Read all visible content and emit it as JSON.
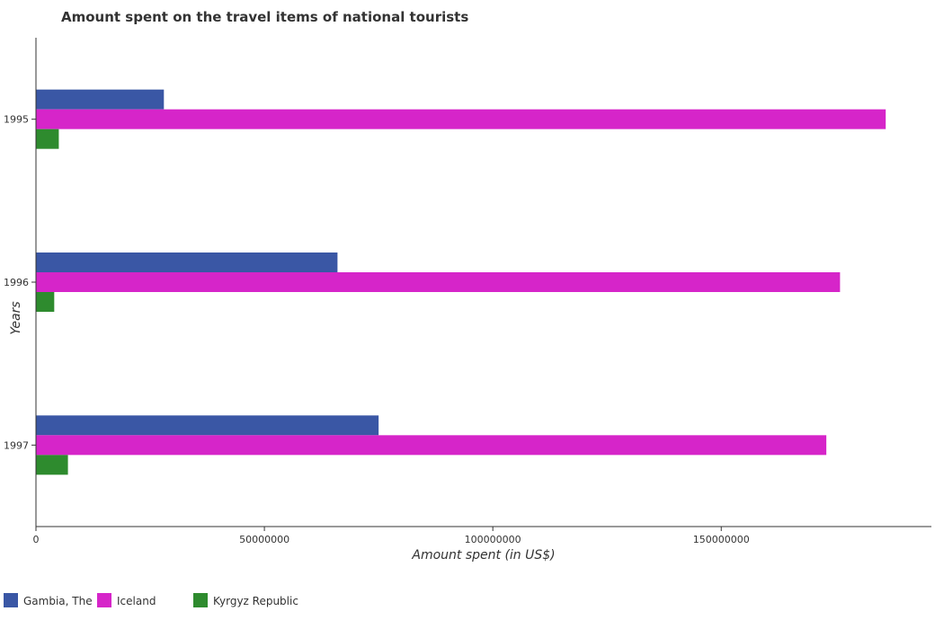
{
  "chart_data": {
    "type": "bar",
    "orientation": "horizontal",
    "title": "Amount spent on the travel items of national tourists",
    "xlabel": "Amount spent (in US$)",
    "ylabel": "Years",
    "categories": [
      "1995",
      "1996",
      "1997"
    ],
    "series": [
      {
        "name": "Gambia, The",
        "color": "#3a57a5",
        "values": [
          28000000,
          66000000,
          75000000
        ]
      },
      {
        "name": "Iceland",
        "color": "#d625c9",
        "values": [
          186000000,
          176000000,
          173000000
        ]
      },
      {
        "name": "Kyrgyz Republic",
        "color": "#2e8b2e",
        "values": [
          5000000,
          4000000,
          7000000
        ]
      }
    ],
    "xlim": [
      0,
      196000000
    ],
    "xticks": [
      0,
      50000000,
      100000000,
      150000000
    ],
    "xtick_labels": [
      "0",
      "50000000",
      "100000000",
      "150000000"
    ],
    "legend_position": "bottom-left",
    "grid": false
  }
}
